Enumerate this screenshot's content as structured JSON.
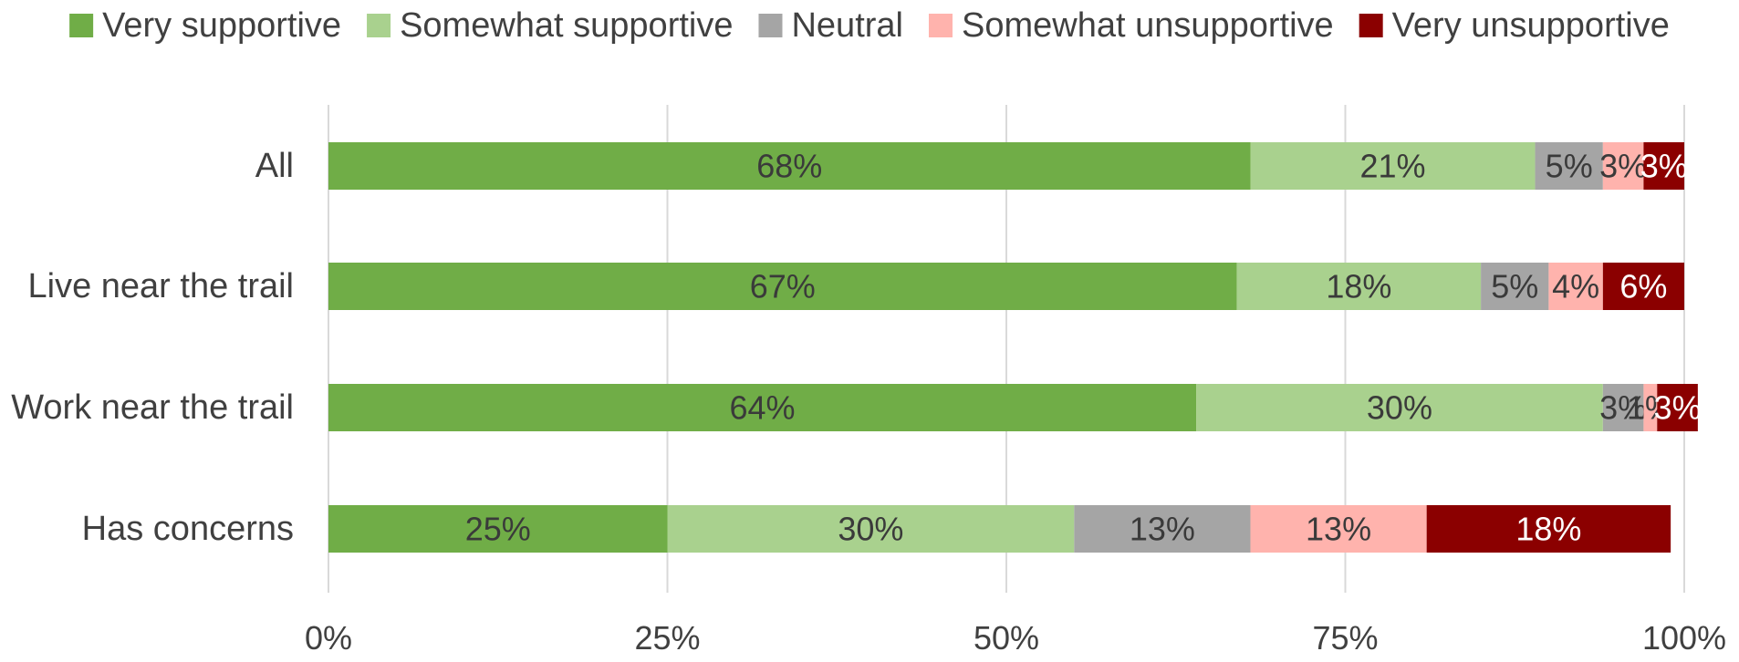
{
  "chart_data": {
    "type": "bar",
    "orientation": "horizontal",
    "stacked": true,
    "categories": [
      "All",
      "Live near the trail",
      "Work near the trail",
      "Has concerns"
    ],
    "series": [
      {
        "name": "Very supportive",
        "color": "#70ad47",
        "label_color": "#3a3a3a",
        "values": [
          68,
          67,
          64,
          25
        ],
        "labels": [
          "68%",
          "67%",
          "64%",
          "25%"
        ]
      },
      {
        "name": "Somewhat supportive",
        "color": "#a9d18e",
        "label_color": "#3a3a3a",
        "values": [
          21,
          18,
          30,
          30
        ],
        "labels": [
          "21%",
          "18%",
          "30%",
          "30%"
        ]
      },
      {
        "name": "Neutral",
        "color": "#a5a5a5",
        "label_color": "#3a3a3a",
        "values": [
          5,
          5,
          3,
          13
        ],
        "labels": [
          "5%",
          "5%",
          "3%",
          "13%"
        ]
      },
      {
        "name": "Somewhat unsupportive",
        "color": "#ffb3ad",
        "label_color": "#3a3a3a",
        "values": [
          3,
          4,
          1,
          13
        ],
        "labels": [
          "3%",
          "4%",
          "1%",
          "13%"
        ]
      },
      {
        "name": "Very unsupportive",
        "color": "#8b0000",
        "label_color": "#ffffff",
        "values": [
          3,
          6,
          3,
          18
        ],
        "labels": [
          "3%",
          "6%",
          "3%",
          "18%"
        ]
      }
    ],
    "xlim": [
      0,
      100
    ],
    "x_ticks": [
      "0%",
      "25%",
      "50%",
      "75%",
      "100%"
    ],
    "grid": true,
    "legend_position": "top"
  }
}
